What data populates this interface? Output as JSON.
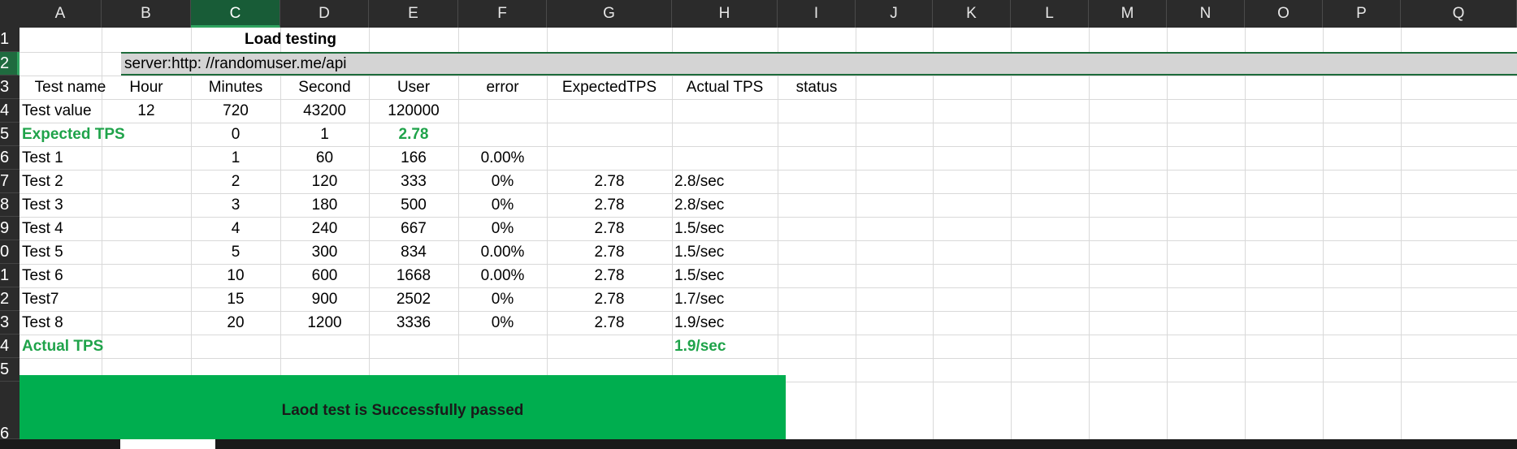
{
  "columns": [
    "A",
    "B",
    "C",
    "D",
    "E",
    "F",
    "G",
    "H",
    "I",
    "J",
    "K",
    "L",
    "M",
    "N",
    "O",
    "P",
    "Q"
  ],
  "rows": [
    "1",
    "2",
    "3",
    "4",
    "5",
    "6",
    "7",
    "8",
    "9",
    "0",
    "1",
    "2",
    "3",
    "4",
    "5",
    "6"
  ],
  "title": "Load testing",
  "server": "server:http: //randomuser.me/api",
  "headers": [
    "Test name",
    "Hour",
    "Minutes",
    "Second",
    "User",
    "error",
    "ExpectedTPS",
    "Actual TPS",
    "status"
  ],
  "test_value_row": {
    "name": "Test value",
    "hour": "12",
    "minutes": "720",
    "second": "43200",
    "user": "120000"
  },
  "expected_tps_row": {
    "name": "Expected TPS",
    "minutes": "0",
    "second": "1",
    "user": "2.78"
  },
  "tests": [
    {
      "name": "Test 1",
      "minutes": "1",
      "second": "60",
      "user": "166",
      "error": "0.00%",
      "expected": "",
      "actual": ""
    },
    {
      "name": "Test 2",
      "minutes": "2",
      "second": "120",
      "user": "333",
      "error": "0%",
      "expected": "2.78",
      "actual": "2.8/sec"
    },
    {
      "name": "Test 3",
      "minutes": "3",
      "second": "180",
      "user": "500",
      "error": "0%",
      "expected": "2.78",
      "actual": "2.8/sec"
    },
    {
      "name": "Test 4",
      "minutes": "4",
      "second": "240",
      "user": "667",
      "error": "0%",
      "expected": "2.78",
      "actual": "1.5/sec"
    },
    {
      "name": "Test 5",
      "minutes": "5",
      "second": "300",
      "user": "834",
      "error": "0.00%",
      "expected": "2.78",
      "actual": "1.5/sec"
    },
    {
      "name": "Test 6",
      "minutes": "10",
      "second": "600",
      "user": "1668",
      "error": "0.00%",
      "expected": "2.78",
      "actual": "1.5/sec"
    },
    {
      "name": "Test7",
      "minutes": "15",
      "second": "900",
      "user": "2502",
      "error": "0%",
      "expected": "2.78",
      "actual": "1.7/sec"
    },
    {
      "name": "Test 8",
      "minutes": "20",
      "second": "1200",
      "user": "3336",
      "error": "0%",
      "expected": "2.78",
      "actual": "1.9/sec"
    }
  ],
  "actual_tps_row": {
    "name": "Actual TPS",
    "value": "1.9/sec"
  },
  "banner": "Laod test is  Successfully passed",
  "colors": {
    "green_text": "#1fa34a",
    "banner": "#00ae4f",
    "header_bg": "#2b2b2b",
    "selected": "#185c37"
  }
}
